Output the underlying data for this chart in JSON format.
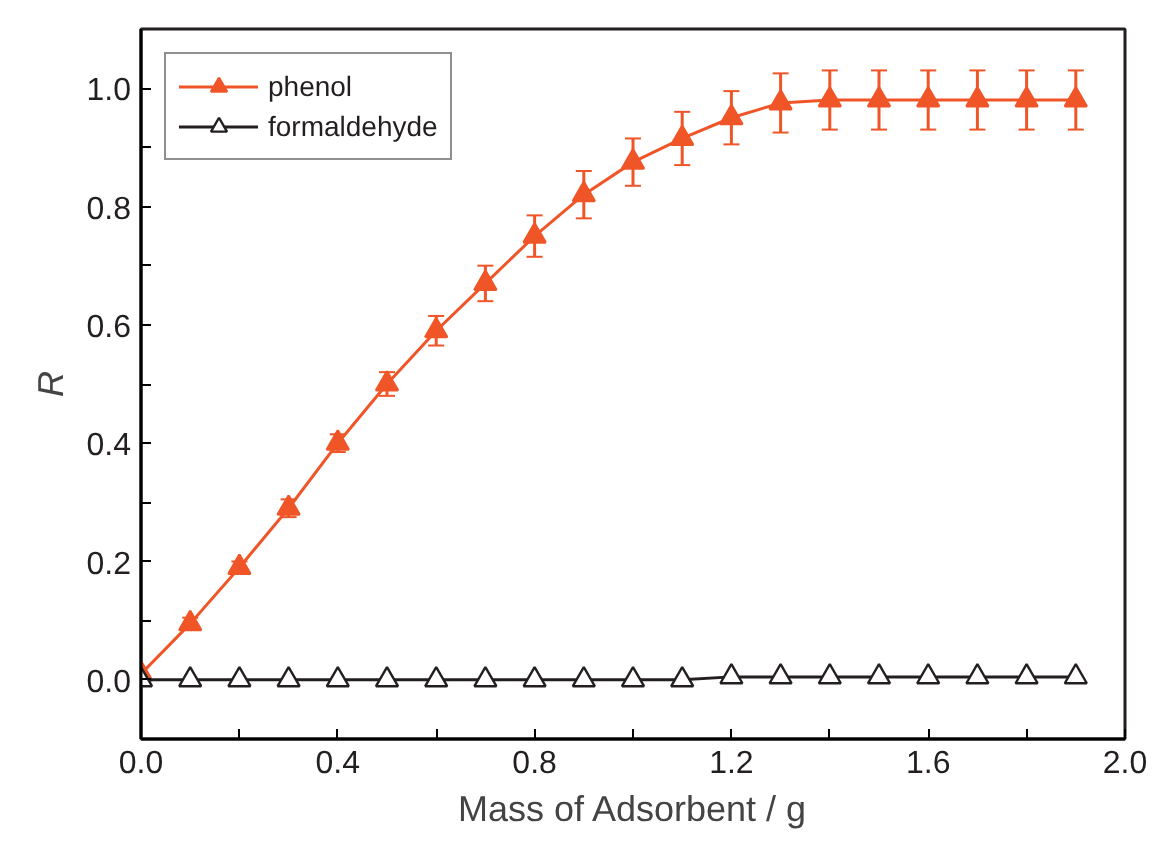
{
  "chart_data": {
    "type": "line",
    "xlabel": "Mass of Adsorbent / g",
    "ylabel": "R",
    "x": [
      0.0,
      0.1,
      0.2,
      0.3,
      0.4,
      0.5,
      0.6,
      0.7,
      0.8,
      0.9,
      1.0,
      1.1,
      1.2,
      1.3,
      1.4,
      1.5,
      1.6,
      1.7,
      1.8,
      1.9
    ],
    "series": [
      {
        "name": "phenol",
        "color": "#f05528",
        "marker": "triangle",
        "values": [
          0.01,
          0.095,
          0.19,
          0.29,
          0.4,
          0.5,
          0.59,
          0.67,
          0.75,
          0.82,
          0.875,
          0.915,
          0.95,
          0.975,
          0.98,
          0.98,
          0.98,
          0.98,
          0.98,
          0.98
        ],
        "errors": [
          null,
          0.01,
          0.01,
          0.015,
          0.015,
          0.02,
          0.025,
          0.03,
          0.035,
          0.04,
          0.04,
          0.045,
          0.045,
          0.05,
          0.05,
          0.05,
          0.05,
          0.05,
          0.05,
          0.05
        ]
      },
      {
        "name": "formaldehyde",
        "color": "#231f20",
        "marker": "triangle",
        "values": [
          0.0,
          0.0,
          0.0,
          0.0,
          0.0,
          0.0,
          0.0,
          0.0,
          0.0,
          0.0,
          0.0,
          0.0,
          0.005,
          0.005,
          0.005,
          0.005,
          0.005,
          0.005,
          0.005,
          0.005
        ]
      }
    ],
    "xlim": [
      0.0,
      2.0
    ],
    "ylim": [
      -0.1,
      1.1
    ],
    "xticks": [
      {
        "value": 0.0,
        "label": "0.0"
      },
      {
        "value": 0.2,
        "label": null
      },
      {
        "value": 0.4,
        "label": "0.4"
      },
      {
        "value": 0.6,
        "label": null
      },
      {
        "value": 0.8,
        "label": "0.8"
      },
      {
        "value": 1.0,
        "label": null
      },
      {
        "value": 1.2,
        "label": "1.2"
      },
      {
        "value": 1.4,
        "label": null
      },
      {
        "value": 1.6,
        "label": "1.6"
      },
      {
        "value": 1.8,
        "label": null
      },
      {
        "value": 2.0,
        "label": "2.0"
      }
    ],
    "yticks": [
      {
        "value": 0.0,
        "label": "0.0"
      },
      {
        "value": 0.1,
        "label": null
      },
      {
        "value": 0.2,
        "label": "0.2"
      },
      {
        "value": 0.3,
        "label": null
      },
      {
        "value": 0.4,
        "label": "0.4"
      },
      {
        "value": 0.5,
        "label": null
      },
      {
        "value": 0.6,
        "label": "0.6"
      },
      {
        "value": 0.7,
        "label": null
      },
      {
        "value": 0.8,
        "label": "0.8"
      },
      {
        "value": 0.9,
        "label": null
      },
      {
        "value": 1.0,
        "label": "1.0"
      }
    ],
    "grid": false,
    "legend": "top left"
  }
}
